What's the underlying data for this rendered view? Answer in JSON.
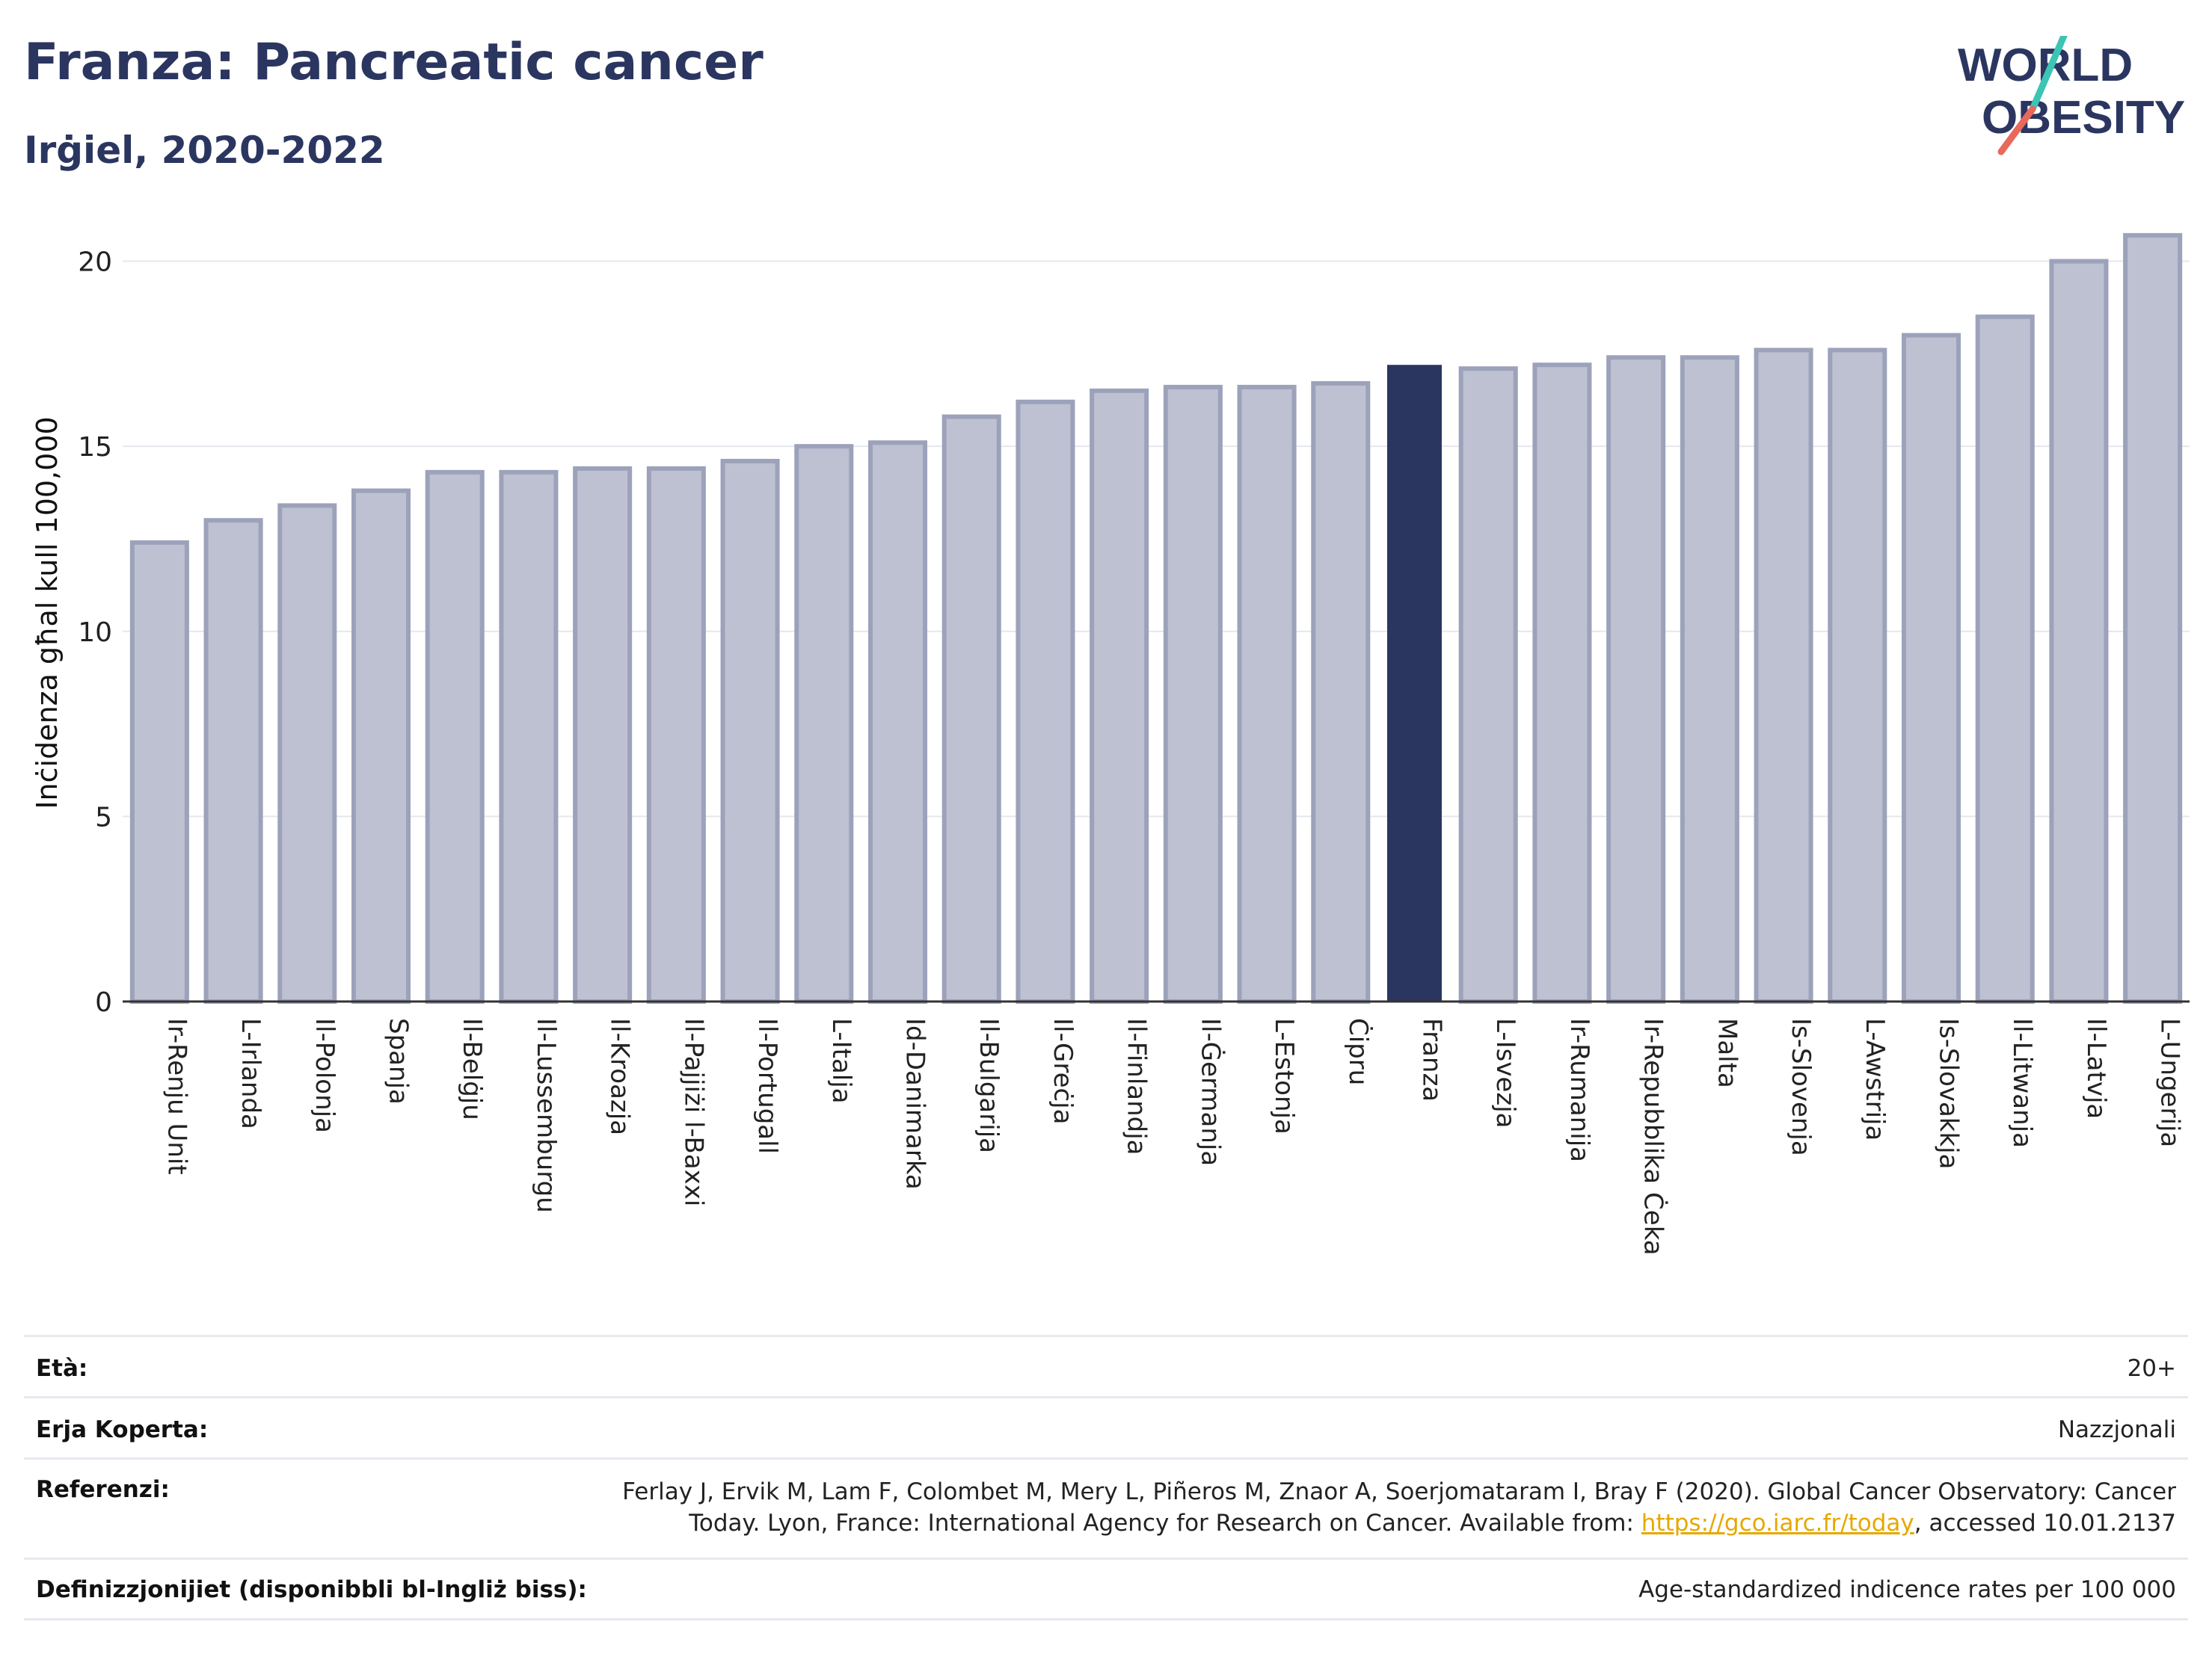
{
  "header": {
    "title": "Franza: Pancreatic cancer",
    "subtitle": "Irġiel, 2020-2022",
    "logo_text_1": "WORLD",
    "logo_text_2": "OBESITY"
  },
  "colors": {
    "highlight_bar": "#2b3660",
    "default_bar_fill": "#bec1d1",
    "default_bar_stroke": "#9da2bb",
    "grid": "#e6e7ee",
    "axis": "#333333",
    "logo_teal": "#3cc4b4",
    "logo_red": "#e8685a",
    "logo_navy": "#2b3660"
  },
  "chart_data": {
    "type": "bar",
    "ylabel": "Inċidenza għal kull 100,000",
    "ylim": [
      0,
      21
    ],
    "yticks": [
      0,
      5,
      10,
      15,
      20
    ],
    "grid": true,
    "highlight": "Franza",
    "categories": [
      "Ir-Renju Unit",
      "L-Irlanda",
      "Il-Polonja",
      "Spanja",
      "Il-Belġju",
      "Il-Lussemburgu",
      "Il-Kroazja",
      "Il-Pajjiżi l-Baxxi",
      "Il-Portugall",
      "L-Italja",
      "Id-Danimarka",
      "Il-Bulgarija",
      "Il-Greċja",
      "Il-Finlandja",
      "Il-Ġermanja",
      "L-Estonja",
      "Ċipru",
      "Franza",
      "L-Isvezja",
      "Ir-Rumanija",
      "Ir-Repubblika Ċeka",
      "Malta",
      "Is-Slovenja",
      "L-Awstrija",
      "Is-Slovakkja",
      "Il-Litwanja",
      "Il-Latvja",
      "L-Ungerija"
    ],
    "values": [
      12.4,
      13.0,
      13.4,
      13.8,
      14.3,
      14.3,
      14.4,
      14.4,
      14.6,
      15.0,
      15.1,
      15.8,
      16.2,
      16.5,
      16.6,
      16.6,
      16.7,
      17.2,
      17.1,
      17.2,
      17.4,
      17.4,
      17.6,
      17.6,
      18.0,
      18.5,
      20.0,
      20.7
    ]
  },
  "meta": {
    "age_label": "Età:",
    "age_value": "20+",
    "area_label": "Erja Koperta:",
    "area_value": "Nazzjonali",
    "ref_label": "Referenzi:",
    "ref_line1": "Ferlay J, Ervik M, Lam F, Colombet M, Mery L, Piñeros M, Znaor A, Soerjomataram I, Bray F (2020). Global Cancer Observatory: Cancer",
    "ref_line2_pre": "Today. Lyon, France: International Agency for Research on Cancer. Available from: ",
    "ref_link": "https://gco.iarc.fr/today",
    "ref_line2_post": ", accessed 10.01.2137",
    "def_label": "Definizzjonijiet (disponibbli bl-Ingliż biss):",
    "def_value": "Age-standardized indicence rates per 100 000"
  }
}
